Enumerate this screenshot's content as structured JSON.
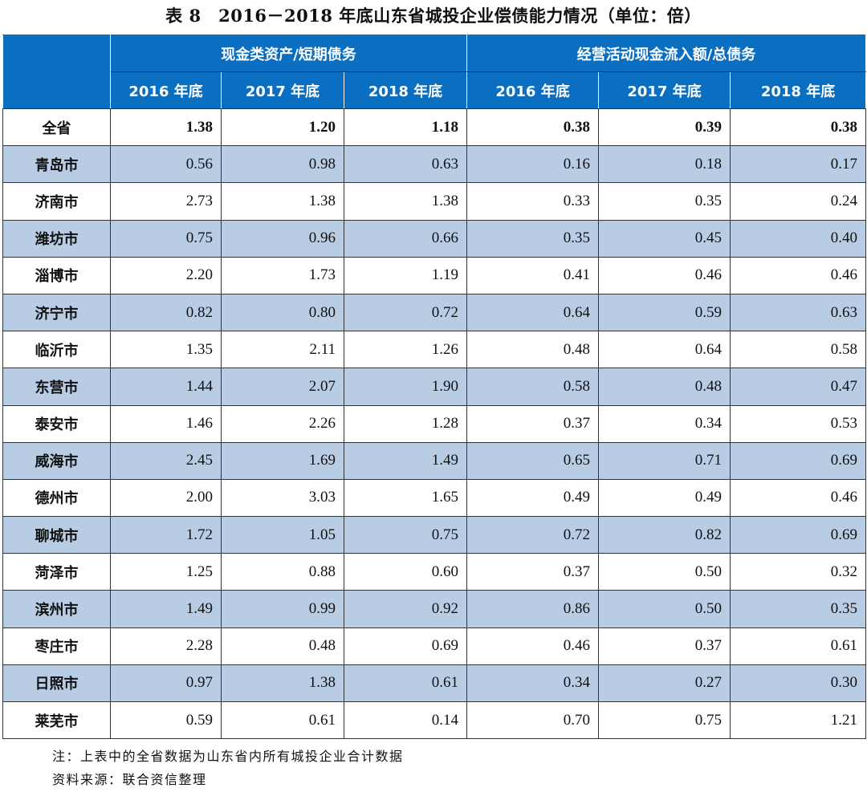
{
  "title": "表 8　2016－2018 年底山东省城投企业偿债能力情况（单位：倍）",
  "header": {
    "group1": "现金类资产/短期债务",
    "group2": "经营活动现金流入额/总债务",
    "years": [
      "2016 年底",
      "2017 年底",
      "2018 年底",
      "2016 年底",
      "2017 年底",
      "2018 年底"
    ]
  },
  "colors": {
    "header_bg": "#0b6fc1",
    "alt_row_bg": "#b8cce4"
  },
  "rows": [
    {
      "name": "全省",
      "values": [
        "1.38",
        "1.20",
        "1.18",
        "0.38",
        "0.39",
        "0.38"
      ]
    },
    {
      "name": "青岛市",
      "values": [
        "0.56",
        "0.98",
        "0.63",
        "0.16",
        "0.18",
        "0.17"
      ]
    },
    {
      "name": "济南市",
      "values": [
        "2.73",
        "1.38",
        "1.38",
        "0.33",
        "0.35",
        "0.24"
      ]
    },
    {
      "name": "潍坊市",
      "values": [
        "0.75",
        "0.96",
        "0.66",
        "0.35",
        "0.45",
        "0.40"
      ]
    },
    {
      "name": "淄博市",
      "values": [
        "2.20",
        "1.73",
        "1.19",
        "0.41",
        "0.46",
        "0.46"
      ]
    },
    {
      "name": "济宁市",
      "values": [
        "0.82",
        "0.80",
        "0.72",
        "0.64",
        "0.59",
        "0.63"
      ]
    },
    {
      "name": "临沂市",
      "values": [
        "1.35",
        "2.11",
        "1.26",
        "0.48",
        "0.64",
        "0.58"
      ]
    },
    {
      "name": "东营市",
      "values": [
        "1.44",
        "2.07",
        "1.90",
        "0.58",
        "0.48",
        "0.47"
      ]
    },
    {
      "name": "泰安市",
      "values": [
        "1.46",
        "2.26",
        "1.28",
        "0.37",
        "0.34",
        "0.53"
      ]
    },
    {
      "name": "威海市",
      "values": [
        "2.45",
        "1.69",
        "1.49",
        "0.65",
        "0.71",
        "0.69"
      ]
    },
    {
      "name": "德州市",
      "values": [
        "2.00",
        "3.03",
        "1.65",
        "0.49",
        "0.49",
        "0.46"
      ]
    },
    {
      "name": "聊城市",
      "values": [
        "1.72",
        "1.05",
        "0.75",
        "0.72",
        "0.82",
        "0.69"
      ]
    },
    {
      "name": "菏泽市",
      "values": [
        "1.25",
        "0.88",
        "0.60",
        "0.37",
        "0.50",
        "0.32"
      ]
    },
    {
      "name": "滨州市",
      "values": [
        "1.49",
        "0.99",
        "0.92",
        "0.86",
        "0.50",
        "0.35"
      ]
    },
    {
      "name": "枣庄市",
      "values": [
        "2.28",
        "0.48",
        "0.69",
        "0.46",
        "0.37",
        "0.61"
      ]
    },
    {
      "name": "日照市",
      "values": [
        "0.97",
        "1.38",
        "0.61",
        "0.34",
        "0.27",
        "0.30"
      ]
    },
    {
      "name": "莱芜市",
      "values": [
        "0.59",
        "0.61",
        "0.14",
        "0.70",
        "0.75",
        "1.21"
      ]
    }
  ],
  "notes": {
    "note": "注：上表中的全省数据为山东省内所有城投企业合计数据",
    "source": "资料来源：联合资信整理"
  }
}
